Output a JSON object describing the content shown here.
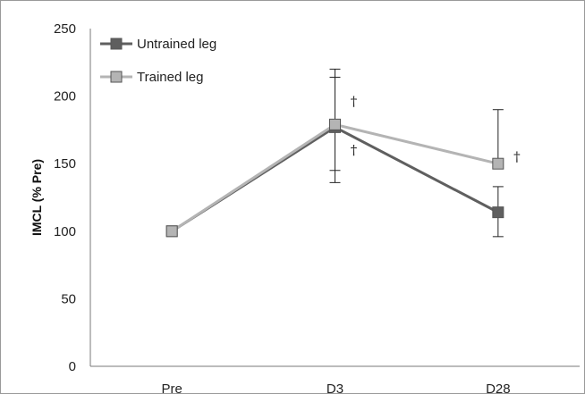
{
  "chart_data": {
    "type": "line",
    "title": "",
    "xlabel": "",
    "ylabel": "IMCL (% Pre)",
    "categories": [
      "Pre",
      "D3",
      "D28"
    ],
    "ylim": [
      0,
      250
    ],
    "yticks": [
      0,
      50,
      100,
      150,
      200,
      250
    ],
    "grid": false,
    "legend_position": "top-left",
    "series": [
      {
        "name": "Untrained leg",
        "values": [
          100,
          177,
          114
        ],
        "error_low": [
          null,
          136,
          96
        ],
        "error_high": [
          null,
          214,
          133
        ],
        "color": "#5f5f5f",
        "marker": "square"
      },
      {
        "name": "Trained leg",
        "values": [
          100,
          179,
          150
        ],
        "error_low": [
          null,
          145,
          null
        ],
        "error_high": [
          null,
          220,
          190
        ],
        "color": "#b4b4b4",
        "marker": "square"
      }
    ],
    "annotations": [
      {
        "text": "†",
        "x": "D3",
        "y": 196
      },
      {
        "text": "†",
        "x": "D3",
        "y": 160
      },
      {
        "text": "†",
        "x": "D28",
        "y": 155
      }
    ]
  }
}
